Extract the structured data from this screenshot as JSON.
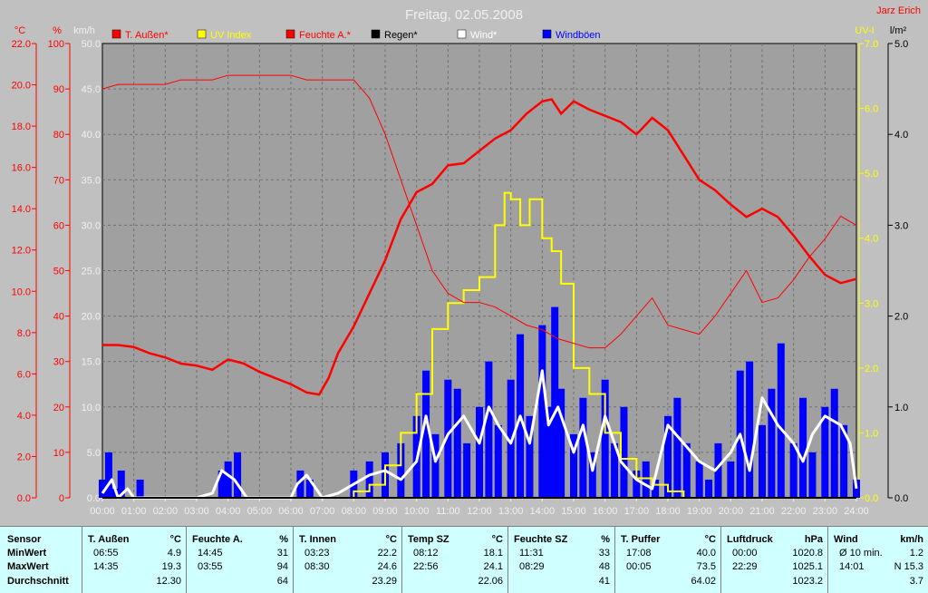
{
  "header": {
    "title": "Freitag, 02.05.2008",
    "author": "Jarz Erich"
  },
  "axes": {
    "temp_unit": "°C",
    "temp_ticks": [
      "0.0",
      "2.0",
      "4.0",
      "6.0",
      "8.0",
      "10.0",
      "12.0",
      "14.0",
      "16.0",
      "18.0",
      "20.0",
      "22.0"
    ],
    "pct_unit": "%",
    "pct_ticks": [
      "0",
      "10",
      "20",
      "30",
      "40",
      "50",
      "60",
      "70",
      "80",
      "90",
      "100"
    ],
    "wind_unit": "km/h",
    "wind_ticks": [
      "0.0",
      "5.0",
      "10.0",
      "15.0",
      "20.0",
      "25.0",
      "30.0",
      "35.0",
      "40.0",
      "45.0",
      "50.0"
    ],
    "uv_unit": "UV-I",
    "uv_ticks": [
      "0.0",
      "1.0",
      "2.0",
      "3.0",
      "4.0",
      "5.0",
      "6.0",
      "7.0"
    ],
    "rain_unit": "l/m²",
    "rain_ticks": [
      "0.0",
      "1.0",
      "2.0",
      "3.0",
      "4.0",
      "5.0"
    ],
    "time_ticks": [
      "00:00",
      "01:00",
      "02:00",
      "03:00",
      "04:00",
      "05:00",
      "06:00",
      "07:00",
      "08:00",
      "09:00",
      "10:00",
      "11:00",
      "12:00",
      "13:00",
      "14:00",
      "15:00",
      "16:00",
      "17:00",
      "18:00",
      "19:00",
      "20:00",
      "21:00",
      "22:00",
      "23:00",
      "24:00"
    ]
  },
  "colors": {
    "background": "#c0c0c0",
    "plot": "#a0a0a0",
    "temperature": "#ff0000",
    "humidity": "#ff0000",
    "uv": "#ffff00",
    "rain": "#000000",
    "wind": "#ffffff",
    "gusts": "#0000ff",
    "table": "#cfffff"
  },
  "chart_data": {
    "type": "line",
    "title": "Freitag, 02.05.2008",
    "x_range": [
      "00:00",
      "24:00"
    ],
    "grid": true,
    "legend": [
      {
        "label": "T. Außen*",
        "color": "#ff0000"
      },
      {
        "label": "UV Index",
        "color": "#ffff00"
      },
      {
        "label": "Feuchte A.*",
        "color": "#ff0000"
      },
      {
        "label": "Regen*",
        "color": "#000000"
      },
      {
        "label": "Wind*",
        "color": "#ffffff"
      },
      {
        "label": "Windböen",
        "color": "#0000ff"
      }
    ],
    "series": [
      {
        "name": "T. Außen*",
        "axis": "°C",
        "range": [
          0,
          22
        ],
        "x": [
          0,
          0.5,
          1,
          1.5,
          2,
          2.5,
          3,
          3.5,
          4,
          4.5,
          5,
          5.5,
          6,
          6.5,
          6.9,
          7.2,
          7.5,
          8,
          8.5,
          9,
          9.5,
          10,
          10.5,
          11,
          11.5,
          12,
          12.5,
          13,
          13.5,
          14,
          14.3,
          14.6,
          15,
          15.5,
          16,
          16.5,
          17,
          17.5,
          18,
          18.5,
          19,
          19.5,
          20,
          20.5,
          21,
          21.5,
          22,
          22.5,
          23,
          23.5,
          24
        ],
        "values": [
          7.4,
          7.4,
          7.3,
          7.0,
          6.8,
          6.5,
          6.4,
          6.2,
          6.7,
          6.5,
          6.1,
          5.8,
          5.5,
          5.1,
          5.0,
          5.8,
          7.0,
          8.3,
          9.9,
          11.5,
          13.5,
          14.8,
          15.2,
          16.1,
          16.2,
          16.8,
          17.4,
          17.8,
          18.6,
          19.2,
          19.3,
          18.6,
          19.2,
          18.8,
          18.5,
          18.2,
          17.6,
          18.4,
          17.8,
          16.6,
          15.4,
          14.9,
          14.2,
          13.6,
          14.0,
          13.6,
          12.7,
          11.7,
          10.8,
          10.4,
          10.6
        ]
      },
      {
        "name": "Feuchte A.*",
        "axis": "%",
        "range": [
          0,
          100
        ],
        "x": [
          0,
          0.5,
          1,
          1.5,
          2,
          2.5,
          3,
          3.5,
          4,
          4.5,
          5,
          5.5,
          6,
          6.5,
          7,
          7.5,
          8,
          8.5,
          9,
          9.5,
          10,
          10.5,
          11,
          11.5,
          12,
          12.5,
          13,
          13.5,
          14,
          14.5,
          15,
          15.5,
          16,
          16.5,
          17,
          17.5,
          18,
          18.5,
          19,
          19.5,
          20,
          20.5,
          21,
          21.5,
          22,
          22.5,
          23,
          23.5,
          24
        ],
        "values": [
          90,
          91,
          91,
          91,
          91,
          92,
          92,
          92,
          93,
          93,
          93,
          93,
          93,
          92,
          92,
          92,
          92,
          88,
          80,
          70,
          60,
          50,
          45,
          43,
          43,
          42,
          40,
          38,
          37,
          35,
          34,
          33,
          33,
          36,
          40,
          44,
          38,
          37,
          36,
          40,
          45,
          50,
          43,
          44,
          48,
          53,
          57,
          62,
          60
        ]
      },
      {
        "name": "UV Index",
        "axis": "UV-I",
        "range": [
          0,
          7
        ],
        "x": [
          0,
          7,
          8,
          8.5,
          9,
          9.5,
          10,
          10.5,
          11,
          11.5,
          12,
          12.5,
          12.8,
          13,
          13.3,
          13.6,
          14,
          14.3,
          14.6,
          15,
          15.5,
          16,
          16.5,
          17,
          17.5,
          18,
          18.5,
          19,
          24
        ],
        "values": [
          0,
          0,
          0.1,
          0.2,
          0.5,
          1.0,
          1.6,
          2.6,
          3.0,
          3.2,
          3.4,
          4.2,
          4.7,
          4.6,
          4.2,
          4.6,
          4.0,
          3.8,
          3.3,
          2.0,
          1.6,
          1.0,
          0.6,
          0.3,
          0.2,
          0.1,
          0,
          0,
          0
        ]
      },
      {
        "name": "Regen*",
        "axis": "l/m²",
        "range": [
          0,
          5
        ],
        "x": [
          0,
          24
        ],
        "values": [
          0,
          0
        ]
      },
      {
        "name": "Wind*",
        "axis": "km/h",
        "range": [
          0,
          50
        ],
        "x": [
          0,
          0.3,
          0.5,
          0.8,
          1,
          1.5,
          2,
          2.5,
          3,
          3.5,
          3.8,
          4.2,
          4.6,
          5,
          5.5,
          6,
          6.2,
          6.5,
          7,
          7.5,
          8,
          8.5,
          9,
          9.5,
          10,
          10.3,
          10.6,
          11,
          11.5,
          12,
          12.3,
          12.6,
          13,
          13.3,
          13.6,
          14,
          14.2,
          14.5,
          15,
          15.3,
          15.6,
          16,
          16.5,
          17,
          17.5,
          18,
          18.5,
          19,
          19.5,
          20,
          20.3,
          20.6,
          21,
          21.5,
          22,
          22.3,
          22.6,
          23,
          23.5,
          23.8,
          24
        ],
        "values": [
          0.5,
          2,
          0,
          1,
          0,
          0,
          0,
          0,
          0,
          0.5,
          3,
          2,
          0,
          0,
          0,
          0,
          1.5,
          2.5,
          0,
          0.5,
          1.5,
          2.5,
          3,
          2,
          4,
          9,
          4,
          7,
          9,
          6,
          10,
          8,
          6,
          9,
          6,
          14,
          8,
          10,
          5,
          8,
          3,
          9,
          4,
          2,
          1,
          8,
          6,
          4,
          3,
          5,
          7,
          3,
          11,
          8,
          6,
          4,
          7,
          9,
          8,
          6,
          1
        ]
      },
      {
        "name": "Windböen",
        "axis": "km/h",
        "range": [
          0,
          50
        ],
        "x": [
          0,
          0.2,
          0.4,
          0.6,
          0.8,
          1,
          1.2,
          1.5,
          2,
          2.5,
          3,
          3.5,
          3.8,
          4,
          4.3,
          4.6,
          5,
          5.5,
          6,
          6.3,
          6.6,
          7,
          7.5,
          8,
          8.5,
          9,
          9.5,
          10,
          10.3,
          10.6,
          11,
          11.3,
          11.6,
          12,
          12.3,
          12.6,
          13,
          13.3,
          13.6,
          14,
          14.2,
          14.4,
          14.6,
          15,
          15.3,
          15.6,
          16,
          16.3,
          16.6,
          17,
          17.3,
          17.6,
          18,
          18.3,
          18.6,
          19,
          19.3,
          19.6,
          20,
          20.3,
          20.6,
          21,
          21.3,
          21.6,
          22,
          22.3,
          22.6,
          23,
          23.3,
          23.6,
          24
        ],
        "values": [
          2,
          5,
          1,
          3,
          0,
          0,
          2,
          0,
          0,
          0,
          0,
          0,
          3,
          4,
          5,
          0,
          0,
          0,
          0,
          3,
          2,
          0,
          0,
          3,
          4,
          5,
          6,
          9,
          14,
          7,
          13,
          12,
          6,
          10,
          15,
          8,
          13,
          18,
          9,
          19,
          10,
          21,
          12,
          7,
          11,
          5,
          13,
          6,
          10,
          3,
          4,
          2,
          9,
          11,
          6,
          4,
          2,
          6,
          4,
          14,
          15,
          8,
          12,
          17,
          6,
          11,
          5,
          10,
          12,
          8,
          2
        ]
      }
    ]
  },
  "table": {
    "row_labels": [
      "Sensor",
      "MinWert",
      "MaxWert",
      "Durchschnitt"
    ],
    "columns": [
      {
        "name": "T. Außen",
        "unit": "°C",
        "min_time": "06:55",
        "min": "4.9",
        "max_time": "14:35",
        "max": "19.3",
        "avg": "12.30"
      },
      {
        "name": "Feuchte A.",
        "unit": "%",
        "min_time": "14:45",
        "min": "31",
        "max_time": "03:55",
        "max": "94",
        "avg": "64"
      },
      {
        "name": "T. Innen",
        "unit": "°C",
        "min_time": "03:23",
        "min": "22.2",
        "max_time": "08:30",
        "max": "24.6",
        "avg": "23.29"
      },
      {
        "name": "Temp SZ",
        "unit": "°C",
        "min_time": "08:12",
        "min": "18.1",
        "max_time": "22:56",
        "max": "24.1",
        "avg": "22.06"
      },
      {
        "name": "Feuchte SZ",
        "unit": "%",
        "min_time": "11:31",
        "min": "33",
        "max_time": "08:29",
        "max": "48",
        "avg": "41"
      },
      {
        "name": "T. Puffer",
        "unit": "°C",
        "min_time": "17:08",
        "min": "40.0",
        "max_time": "00:05",
        "max": "73.5",
        "avg": "64.02"
      },
      {
        "name": "Luftdruck",
        "unit": "hPa",
        "min_time": "00:00",
        "min": "1020.8",
        "max_time": "22:29",
        "max": "1025.1",
        "avg": "1023.2"
      },
      {
        "name": "Wind",
        "unit": "km/h",
        "min_time": "Ø 10 min.",
        "min": "1.2",
        "max_time": "14:01",
        "max": "N 15.3",
        "avg": "3.7"
      }
    ]
  }
}
